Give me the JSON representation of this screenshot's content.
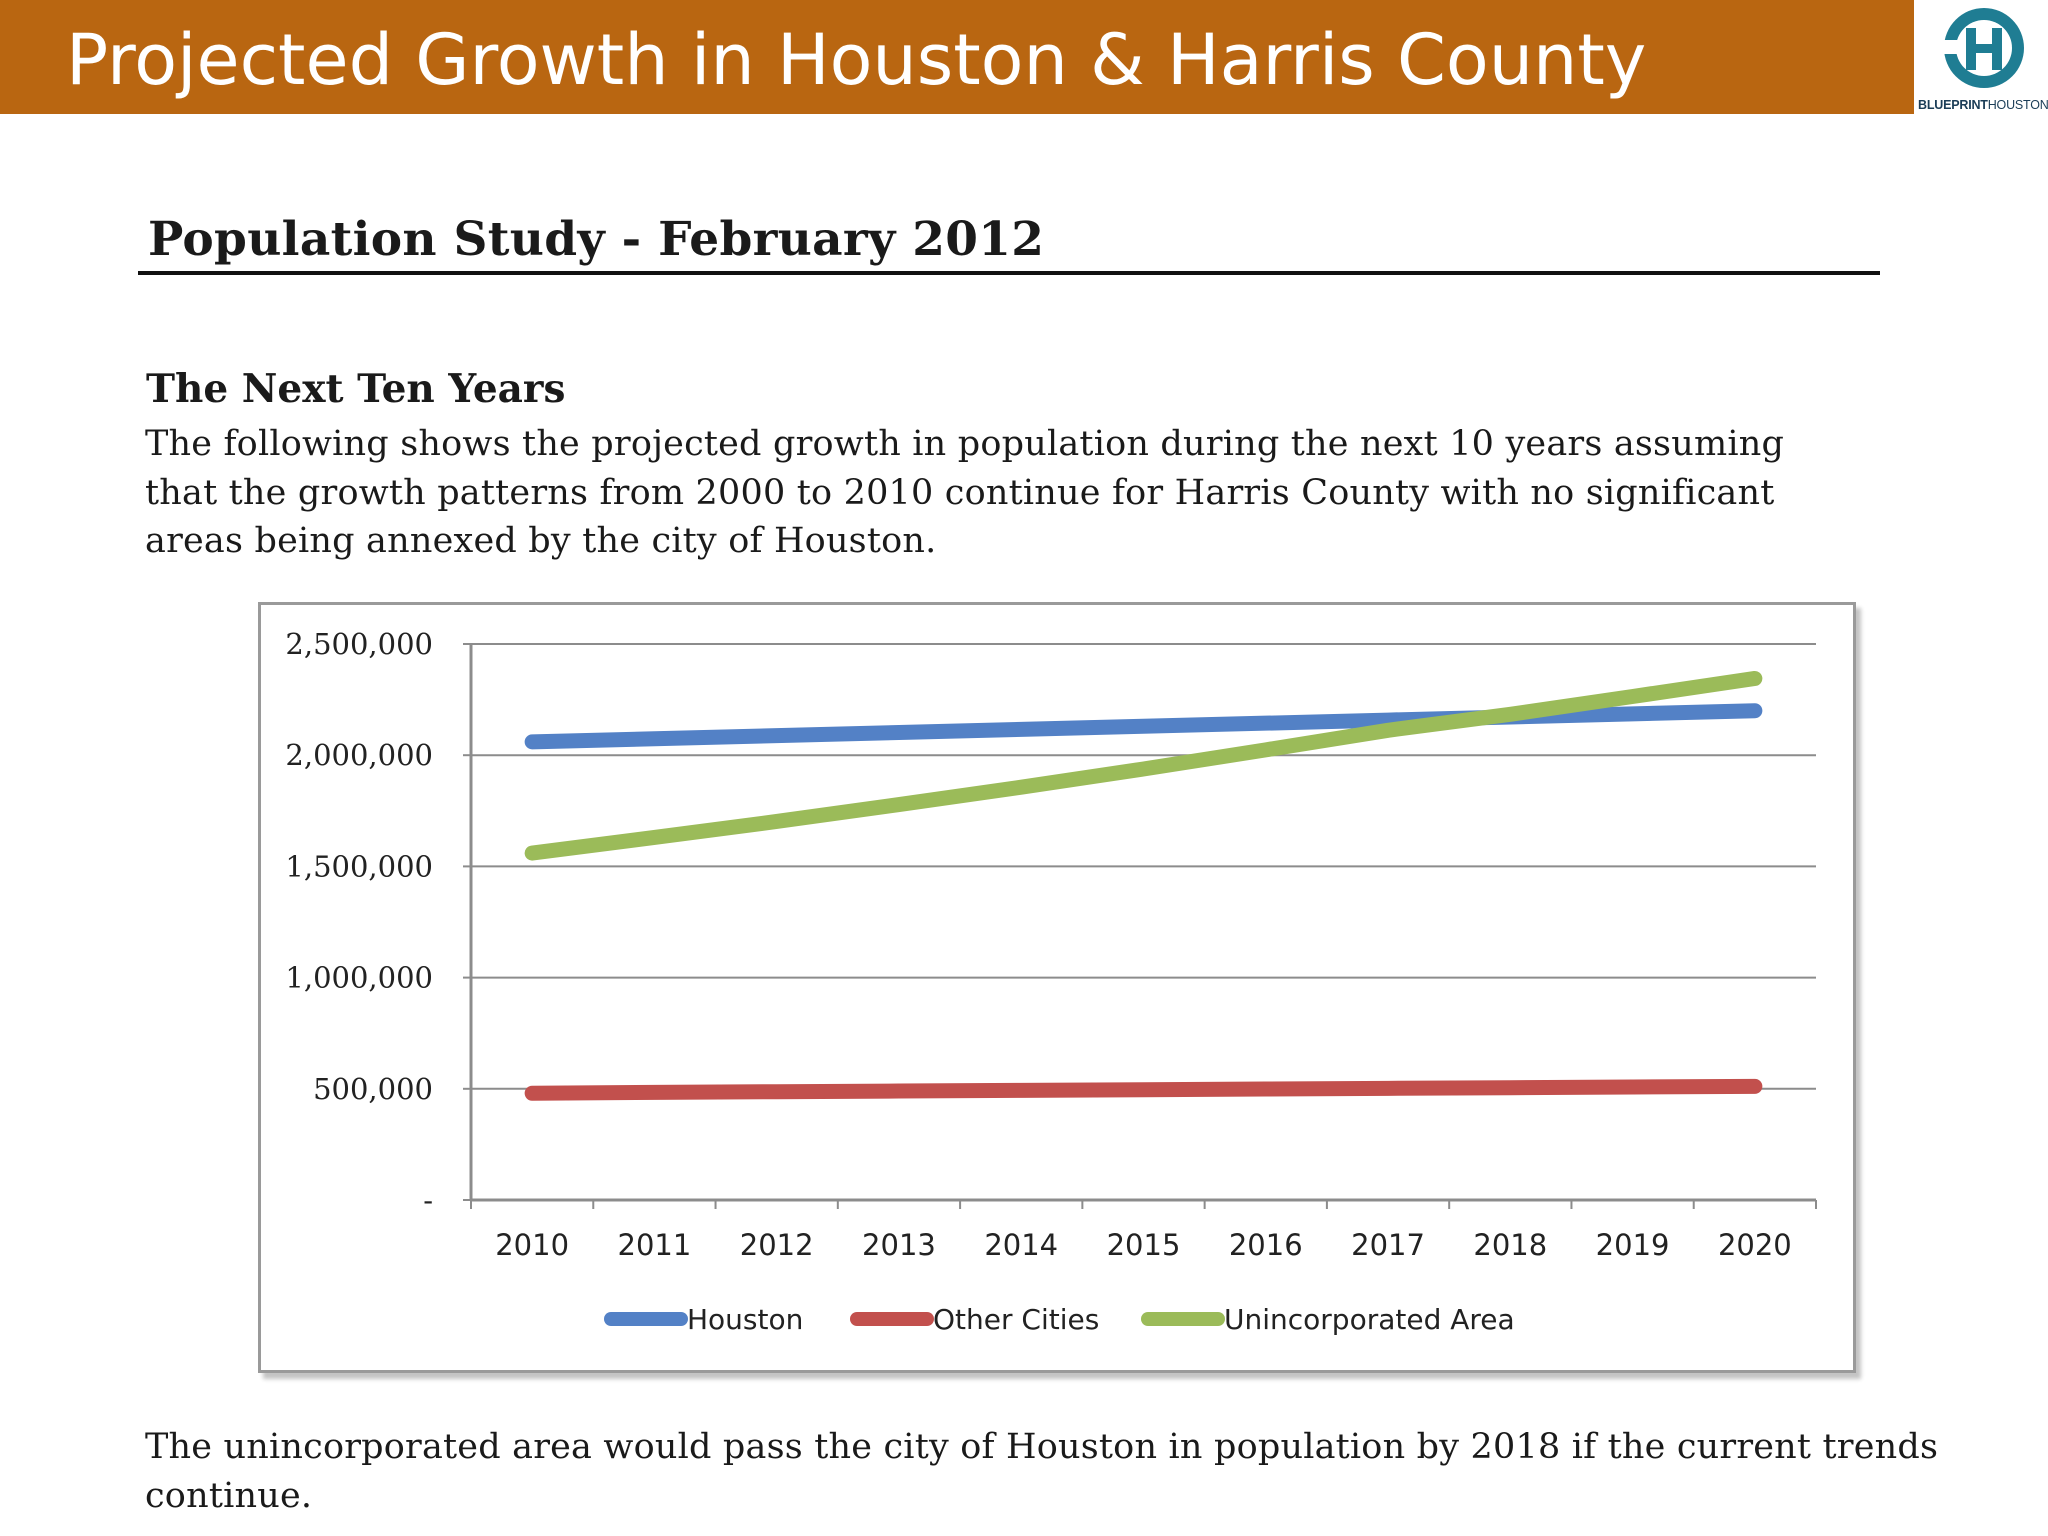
{
  "header": {
    "title": "Projected Growth in Houston & Harris County",
    "logo_text_bold": "BLUEPRINT",
    "logo_text_regular": "HOUSTON",
    "bar_color": "#b96611",
    "logo_color": "#1f7d93"
  },
  "document": {
    "study_heading": "Population Study - February 2012",
    "section_heading": "The Next Ten Years",
    "intro": "The following shows the projected growth in population during the next 10 years assuming that the growth patterns from 2000 to 2010 continue for Harris County with no significant areas being annexed by the city of Houston.",
    "conclusion": "The unincorporated area would pass the city of Houston in population by 2018 if the current trends continue."
  },
  "chart_data": {
    "type": "line",
    "title": "",
    "xlabel": "",
    "ylabel": "",
    "categories": [
      "2010",
      "2011",
      "2012",
      "2013",
      "2014",
      "2015",
      "2016",
      "2017",
      "2018",
      "2019",
      "2020"
    ],
    "ylim": [
      0,
      2500000
    ],
    "yticks": [
      0,
      500000,
      1000000,
      1500000,
      2000000,
      2500000
    ],
    "ytick_labels": [
      "-",
      "500,000",
      "1,000,000",
      "1,500,000",
      "2,000,000",
      "2,500,000"
    ],
    "grid": true,
    "legend_position": "bottom",
    "series": [
      {
        "name": "Houston",
        "color": "#5381c6",
        "values": [
          2060000,
          2074000,
          2088000,
          2102000,
          2116000,
          2130000,
          2144000,
          2158000,
          2172000,
          2186000,
          2200000
        ]
      },
      {
        "name": "Other Cities",
        "color": "#c2504d",
        "values": [
          480000,
          484000,
          487000,
          490000,
          493000,
          496000,
          499000,
          502000,
          505000,
          508000,
          511000
        ]
      },
      {
        "name": "Unincorporated Area",
        "color": "#9bbb59",
        "values": [
          1560000,
          1630000,
          1702000,
          1778000,
          1856000,
          1938000,
          2024000,
          2112000,
          2184000,
          2264000,
          2345000
        ]
      }
    ]
  }
}
